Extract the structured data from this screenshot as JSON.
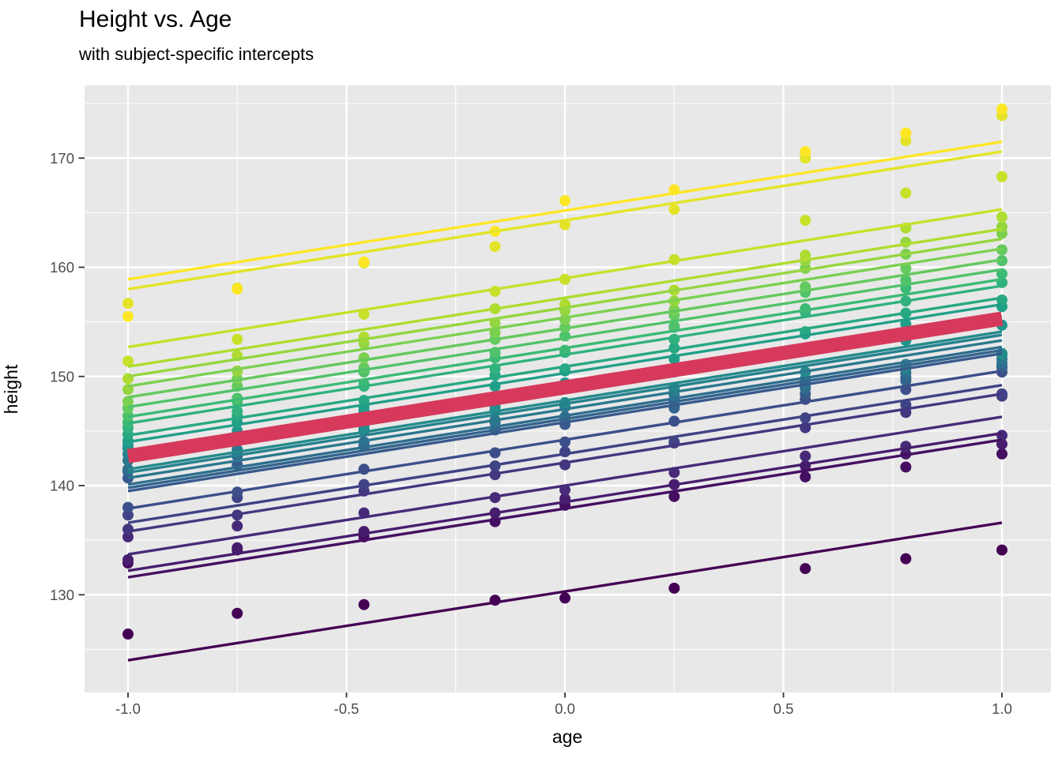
{
  "chart_data": {
    "type": "scatter",
    "title": "Height vs. Age",
    "subtitle": "with subject-specific intercepts",
    "xlabel": "age",
    "ylabel": "height",
    "legend": "none",
    "grid": "on",
    "xlim": [
      -1.1,
      1.12
    ],
    "ylim": [
      121.0,
      176.6
    ],
    "x_ticks": {
      "values": [
        -1.0,
        -0.5,
        0.0,
        0.5,
        1.0
      ],
      "labels": [
        "-1.0",
        "-0.5",
        "0.0",
        "0.5",
        "1.0"
      ]
    },
    "y_ticks": {
      "values": [
        130,
        140,
        150,
        160,
        170
      ],
      "labels": [
        "130",
        "140",
        "150",
        "160",
        "170"
      ]
    },
    "x_minor": [
      -0.75,
      -0.25,
      0.25,
      0.75
    ],
    "y_minor": [
      125,
      135,
      145,
      155,
      165,
      175
    ],
    "x": [
      -1.0,
      -0.75,
      -0.46,
      -0.16,
      0.0,
      0.25,
      0.55,
      0.78,
      1.0
    ],
    "line_slope": 6.3,
    "line_span": [
      -1.0,
      1.0
    ],
    "mean_line": {
      "intercept": 149.0,
      "slope": 6.3,
      "color": "#D6395C",
      "width": 18
    },
    "subjects": [
      {
        "color": "#440154",
        "intercept": 130.3,
        "heights": [
          126.4,
          128.3,
          129.1,
          129.5,
          129.7,
          130.6,
          132.4,
          133.3,
          134.1
        ]
      },
      {
        "color": "#450F61",
        "intercept": 137.9,
        "heights": [
          132.9,
          134.1,
          135.3,
          136.7,
          138.2,
          139.0,
          140.8,
          141.7,
          142.9
        ]
      },
      {
        "color": "#471D6E",
        "intercept": 138.5,
        "heights": [
          133.2,
          134.3,
          135.8,
          137.5,
          138.8,
          140.1,
          141.8,
          142.9,
          143.8
        ]
      },
      {
        "color": "#472B79",
        "intercept": 140.0,
        "heights": [
          135.3,
          136.3,
          137.5,
          138.9,
          139.6,
          141.2,
          142.7,
          143.6,
          144.6
        ]
      },
      {
        "color": "#44377F",
        "intercept": 142.1,
        "heights": [
          136.0,
          137.3,
          139.5,
          141.0,
          141.9,
          143.9,
          145.3,
          146.7,
          148.2
        ]
      },
      {
        "color": "#404386",
        "intercept": 142.9,
        "heights": [
          137.3,
          138.9,
          140.1,
          141.8,
          143.1,
          144.0,
          146.2,
          147.4,
          148.4
        ]
      },
      {
        "color": "#3C4F8A",
        "intercept": 144.2,
        "heights": [
          138.0,
          139.4,
          141.5,
          143.0,
          144.0,
          145.9,
          147.9,
          148.8,
          150.4
        ]
      },
      {
        "color": "#375A8C",
        "intercept": 145.8,
        "heights": [
          140.7,
          141.9,
          143.6,
          145.1,
          145.6,
          147.2,
          148.4,
          149.9,
          150.8
        ]
      },
      {
        "color": "#33648D",
        "intercept": 146.1,
        "heights": [
          141.3,
          142.7,
          143.8,
          145.2,
          146.3,
          147.1,
          149.0,
          149.6,
          150.9
        ]
      },
      {
        "color": "#2E6E8E",
        "intercept": 146.4,
        "heights": [
          141.5,
          142.9,
          144.0,
          145.8,
          146.2,
          147.8,
          148.9,
          150.3,
          151.2
        ]
      },
      {
        "color": "#2A788E",
        "intercept": 147.0,
        "heights": [
          142.3,
          143.3,
          145.0,
          146.0,
          147.2,
          148.3,
          149.4,
          150.7,
          151.6
        ]
      },
      {
        "color": "#26818E",
        "intercept": 147.5,
        "heights": [
          142.9,
          144.2,
          145.2,
          146.9,
          147.3,
          148.8,
          149.8,
          151.1,
          152.0
        ]
      },
      {
        "color": "#248B8C",
        "intercept": 147.8,
        "heights": [
          143.4,
          144.7,
          145.5,
          147.2,
          147.6,
          149.0,
          150.4,
          150.9,
          152.1
        ]
      },
      {
        "color": "#21958B",
        "intercept": 149.2,
        "heights": [
          143.7,
          145.0,
          146.9,
          148.1,
          149.4,
          150.4,
          152.5,
          153.3,
          154.7
        ]
      },
      {
        "color": "#209F88",
        "intercept": 150.3,
        "heights": [
          144.1,
          145.8,
          147.2,
          149.1,
          150.5,
          151.6,
          153.9,
          154.8,
          156.4
        ]
      },
      {
        "color": "#28A883",
        "intercept": 150.9,
        "heights": [
          144.7,
          146.4,
          147.8,
          150.1,
          150.7,
          152.6,
          154.1,
          155.8,
          157.0
        ]
      },
      {
        "color": "#30B17D",
        "intercept": 152.0,
        "heights": [
          145.3,
          146.8,
          149.1,
          150.7,
          152.2,
          153.4,
          155.9,
          156.9,
          158.6
        ]
      },
      {
        "color": "#3CBA75",
        "intercept": 152.6,
        "heights": [
          145.8,
          147.7,
          149.3,
          151.7,
          152.4,
          154.5,
          156.2,
          158.1,
          159.4
        ]
      },
      {
        "color": "#50C26A",
        "intercept": 153.5,
        "heights": [
          146.4,
          148.0,
          150.4,
          152.2,
          153.7,
          154.6,
          157.7,
          158.8,
          160.6
        ]
      },
      {
        "color": "#64C95E",
        "intercept": 154.4,
        "heights": [
          147.1,
          149.1,
          150.8,
          153.4,
          154.5,
          155.6,
          158.2,
          159.9,
          161.6
        ]
      },
      {
        "color": "#7BD050",
        "intercept": 155.4,
        "heights": [
          147.7,
          149.8,
          151.7,
          154.0,
          155.2,
          156.1,
          159.9,
          161.2,
          163.1
        ]
      },
      {
        "color": "#95D640",
        "intercept": 156.3,
        "heights": [
          148.8,
          150.5,
          153.0,
          154.9,
          156.0,
          156.9,
          160.6,
          162.3,
          163.7
        ]
      },
      {
        "color": "#AEDC30",
        "intercept": 157.2,
        "heights": [
          149.8,
          151.9,
          153.6,
          156.2,
          156.6,
          157.9,
          161.1,
          163.6,
          164.6
        ]
      },
      {
        "color": "#C8E02A",
        "intercept": 159.0,
        "heights": [
          151.4,
          153.4,
          155.7,
          157.8,
          158.9,
          160.7,
          164.3,
          166.8,
          168.3
        ]
      },
      {
        "color": "#E3E428",
        "intercept": 164.3,
        "heights": [
          156.7,
          158.1,
          160.4,
          161.9,
          163.9,
          165.3,
          170.0,
          171.6,
          173.9
        ]
      },
      {
        "color": "#FDE725",
        "intercept": 165.2,
        "heights": [
          155.5,
          158.0,
          160.5,
          163.3,
          166.1,
          167.1,
          170.6,
          172.3,
          174.5
        ]
      }
    ]
  },
  "style": {
    "panel_bg": "#E8E8E8",
    "grid_color": "#FFFFFF",
    "tick_mark_color": "#333333",
    "tick_label_color": "#4D4D4D",
    "title_color": "#000000",
    "point_radius": 7,
    "subject_line_width": 3.4,
    "grid_major_width": 2.4,
    "grid_minor_width": 1.1
  }
}
